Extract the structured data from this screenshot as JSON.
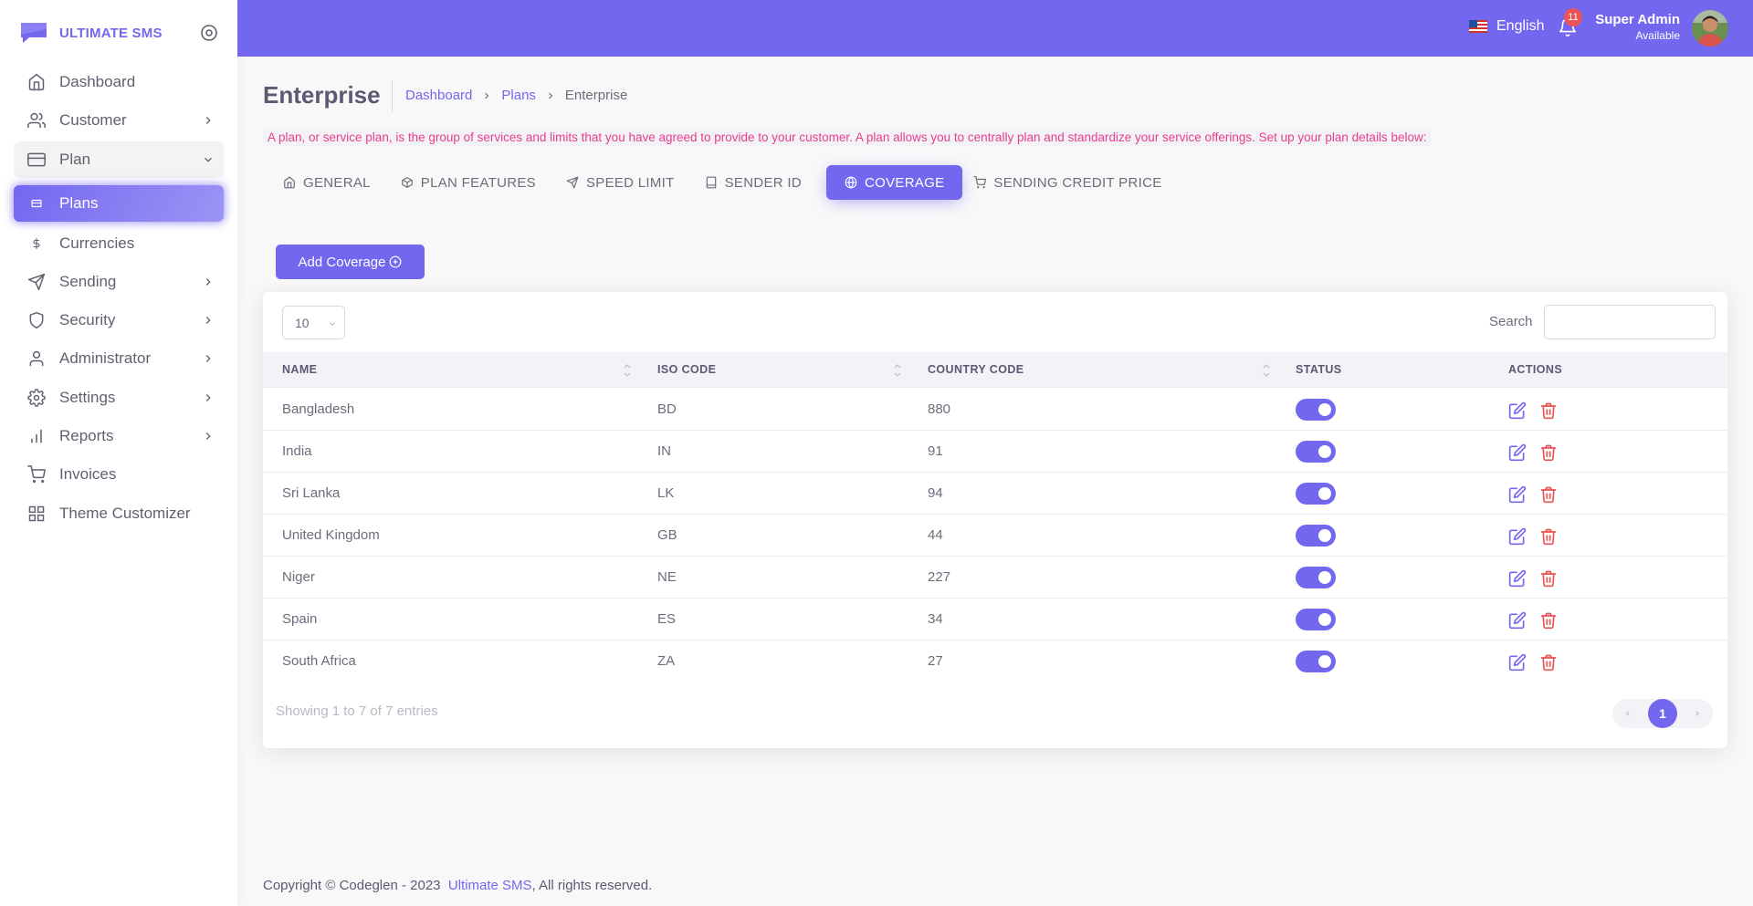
{
  "brand": {
    "name": "ULTIMATE SMS"
  },
  "sidebar": {
    "items": [
      {
        "label": "Dashboard",
        "icon": "home-icon",
        "has_children": false
      },
      {
        "label": "Customer",
        "icon": "users-icon",
        "has_children": true
      },
      {
        "label": "Plan",
        "icon": "credit-card-icon",
        "has_children": true,
        "open": true
      },
      {
        "label": "Plans",
        "icon": "plans-icon",
        "active": true
      },
      {
        "label": "Currencies",
        "icon": "dollar-icon"
      },
      {
        "label": "Sending",
        "icon": "send-icon",
        "has_children": true
      },
      {
        "label": "Security",
        "icon": "shield-icon",
        "has_children": true
      },
      {
        "label": "Administrator",
        "icon": "user-icon",
        "has_children": true
      },
      {
        "label": "Settings",
        "icon": "gear-icon",
        "has_children": true
      },
      {
        "label": "Reports",
        "icon": "bar-chart-icon",
        "has_children": true
      },
      {
        "label": "Invoices",
        "icon": "shopping-cart-icon",
        "has_children": false
      },
      {
        "label": "Theme Customizer",
        "icon": "grid-icon",
        "has_children": false
      }
    ]
  },
  "header": {
    "language": "English",
    "notification_count": "11",
    "user_name": "Super Admin",
    "user_status": "Available"
  },
  "page": {
    "title": "Enterprise",
    "breadcrumb": [
      "Dashboard",
      "Plans",
      "Enterprise"
    ],
    "note": "A plan, or service plan, is the group of services and limits that you have agreed to provide to your customer. A plan allows you to centrally plan and standardize your service offerings. Set up your plan details below:"
  },
  "tabs": [
    {
      "label": "GENERAL",
      "icon": "home-icon"
    },
    {
      "label": "PLAN FEATURES",
      "icon": "box-icon"
    },
    {
      "label": "SPEED LIMIT",
      "icon": "send-icon"
    },
    {
      "label": "SENDER ID",
      "icon": "book-icon"
    },
    {
      "label": "COVERAGE",
      "icon": "globe-icon",
      "active": true
    },
    {
      "label": "SENDING CREDIT PRICE",
      "icon": "shopping-cart-icon"
    }
  ],
  "add_button": {
    "label": "Add Coverage"
  },
  "table": {
    "page_length": "10",
    "search_label": "Search",
    "search_value": "",
    "columns": [
      "NAME",
      "ISO CODE",
      "COUNTRY CODE",
      "STATUS",
      "ACTIONS"
    ],
    "rows": [
      {
        "name": "Bangladesh",
        "iso": "BD",
        "code": "880",
        "status": true
      },
      {
        "name": "India",
        "iso": "IN",
        "code": "91",
        "status": true
      },
      {
        "name": "Sri Lanka",
        "iso": "LK",
        "code": "94",
        "status": true
      },
      {
        "name": "United Kingdom",
        "iso": "GB",
        "code": "44",
        "status": true
      },
      {
        "name": "Niger",
        "iso": "NE",
        "code": "227",
        "status": true
      },
      {
        "name": "Spain",
        "iso": "ES",
        "code": "34",
        "status": true
      },
      {
        "name": "South Africa",
        "iso": "ZA",
        "code": "27",
        "status": true
      }
    ],
    "info": "Showing 1 to 7 of 7 entries",
    "current_page": "1"
  },
  "footer": {
    "copyright": "Copyright © Codeglen - 2023",
    "link": "Ultimate SMS",
    "suffix": ", All rights reserved."
  },
  "colors": {
    "primary": "#7367f0",
    "danger": "#ea5455",
    "note_text": "#e83e8c"
  }
}
